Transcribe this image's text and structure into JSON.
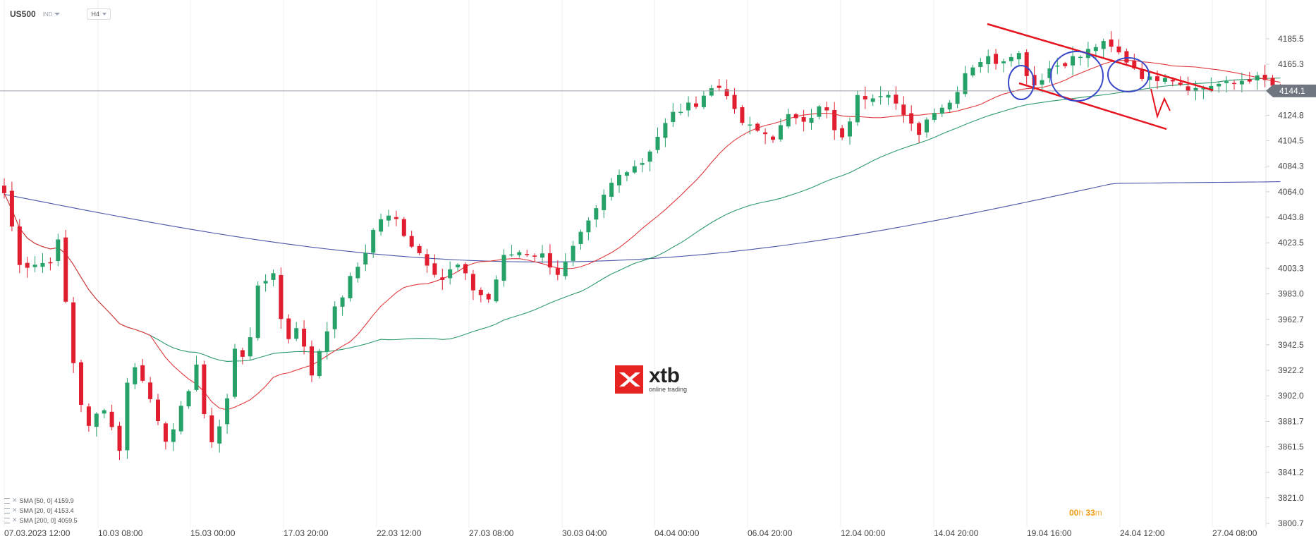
{
  "header": {
    "symbol": "US500",
    "symbol_tag": "IND",
    "timeframe": "H4"
  },
  "current_price": "4144.1",
  "countdown": {
    "h": "00",
    "h_unit": "h",
    "m": "33",
    "m_unit": "m"
  },
  "watermark": {
    "brand": "xtb",
    "tagline": "online trading"
  },
  "indicators": [
    {
      "label": "SMA [50, 0]",
      "value": "4159.9"
    },
    {
      "label": "SMA [20, 0]",
      "value": "4153.4"
    },
    {
      "label": "SMA [200, 0]",
      "value": "4059.5"
    }
  ],
  "colors": {
    "up": "#26a269",
    "down": "#e01e2f",
    "sma20": "#e0383c",
    "sma50": "#2e9a6b",
    "sma200": "#4a57a8",
    "annotation_lines": "#e6141e",
    "annotation_circles": "#3847c8",
    "price_line": "#9aa0a6"
  },
  "chart_data": {
    "type": "candlestick",
    "instrument": "US500",
    "timeframe": "H4",
    "y_ticks": [
      "4185.5",
      "4165.3",
      "4144.6",
      "4124.8",
      "4104.5",
      "4084.3",
      "4064.0",
      "4043.8",
      "4023.5",
      "4003.3",
      "3983.0",
      "3962.7",
      "3942.5",
      "3922.2",
      "3902.0",
      "3881.7",
      "3861.5",
      "3841.2",
      "3821.0",
      "3800.7"
    ],
    "ylim": [
      3800.7,
      4195
    ],
    "x_ticks": [
      "07.03.2023 12:00",
      "10.03 08:00",
      "15.03 00:00",
      "17.03 20:00",
      "22.03 12:00",
      "27.03 08:00",
      "30.03 04:00",
      "04.04 00:00",
      "06.04 20:00",
      "12.04 00:00",
      "14.04 20:00",
      "19.04 16:00",
      "24.04 12:00",
      "27.04 08:00"
    ],
    "candle_count": 167,
    "last_close": 4144.1,
    "series": [
      {
        "name": "SMA [20, 0]",
        "last": 4153.4
      },
      {
        "name": "SMA [50, 0]",
        "last": 4159.9
      },
      {
        "name": "SMA [200, 0]",
        "last": 4059.5
      }
    ],
    "trend_channel": {
      "upper": [
        [
          1,
          4195
        ],
        [
          34,
          4144
        ]
      ],
      "lower": [
        [
          1,
          4150
        ],
        [
          26,
          4110
        ]
      ]
    }
  }
}
